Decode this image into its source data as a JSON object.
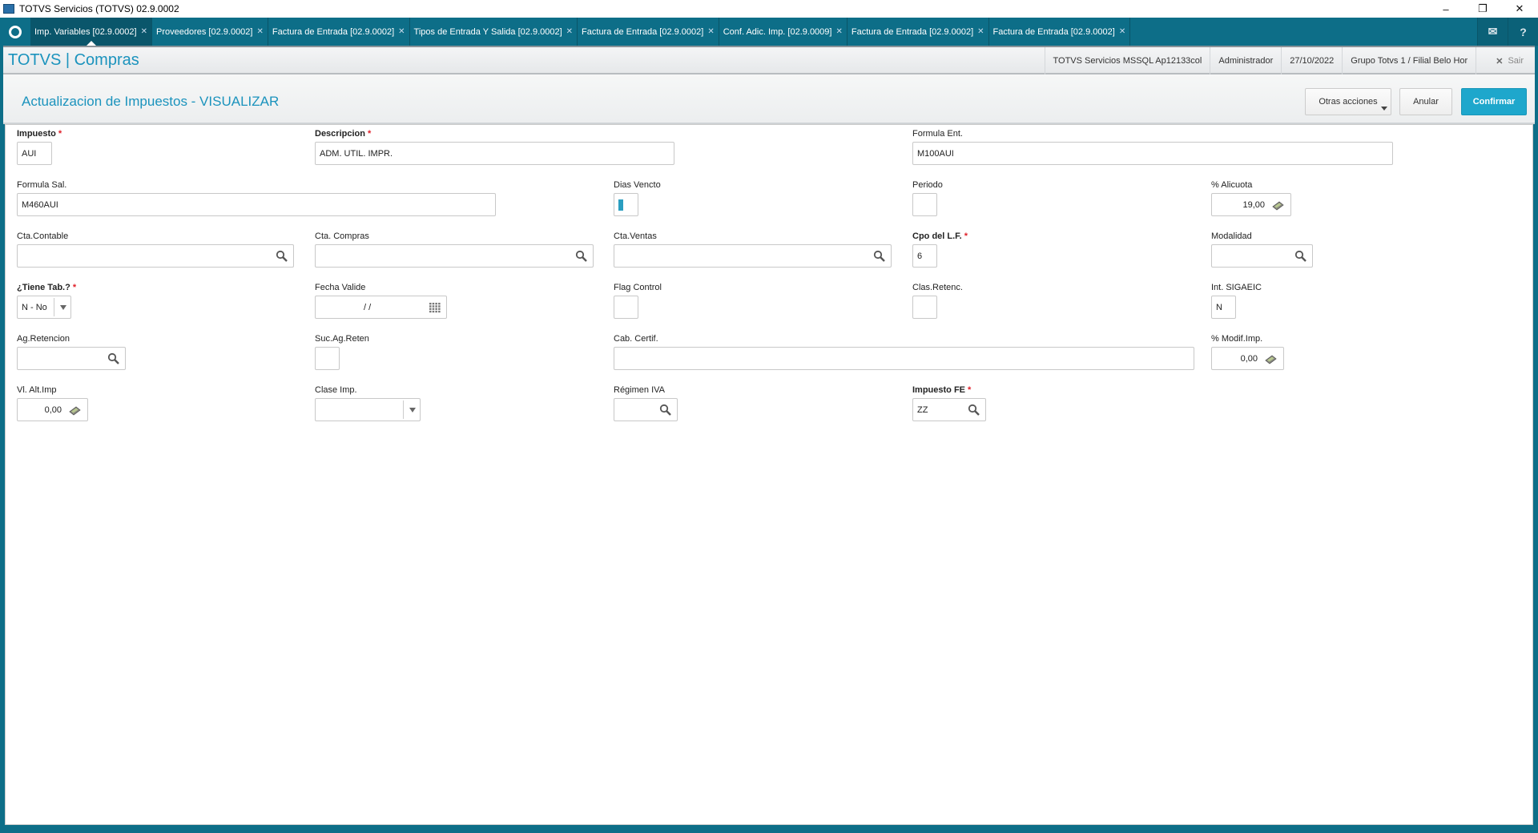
{
  "window": {
    "title": "TOTVS Servicios (TOTVS) 02.9.0002",
    "controls": [
      "minimize",
      "restore",
      "close"
    ]
  },
  "tabs": [
    {
      "label": "Imp. Variables [02.9.0002]",
      "active": true
    },
    {
      "label": "Proveedores [02.9.0002]"
    },
    {
      "label": "Factura de Entrada [02.9.0002]"
    },
    {
      "label": "Tipos de Entrada Y Salida [02.9.0002]"
    },
    {
      "label": "Factura de Entrada [02.9.0002]"
    },
    {
      "label": "Conf. Adic. Imp. [02.9.0009]"
    },
    {
      "label": "Factura de Entrada [02.9.0002]"
    },
    {
      "label": "Factura de Entrada [02.9.0002]"
    }
  ],
  "header": {
    "brand": "TOTVS | Compras",
    "environment": "TOTVS Servicios MSSQL Ap12133col",
    "user": "Administrador",
    "date": "27/10/2022",
    "branch": "Grupo Totvs 1 / Filial Belo Hor",
    "exit": "Sair"
  },
  "page": {
    "title": "Actualizacion de Impuestos - VISUALIZAR",
    "other_actions": "Otras acciones",
    "cancel": "Anular",
    "confirm": "Confirmar"
  },
  "colors": {
    "tabbar": "#0d6e88",
    "accent": "#1b93bd",
    "confirm": "#1ea7cc",
    "required": "#e0202a"
  },
  "fields": {
    "impuesto": {
      "label": "Impuesto",
      "value": "AUI",
      "required": true
    },
    "descripcion": {
      "label": "Descripcion",
      "value": "ADM. UTIL. IMPR.",
      "required": true
    },
    "formula_ent": {
      "label": "Formula Ent.",
      "value": "M100AUI"
    },
    "formula_sal": {
      "label": "Formula Sal.",
      "value": "M460AUI"
    },
    "dias_vencto": {
      "label": "Dias Vencto",
      "value": ""
    },
    "periodo": {
      "label": "Periodo",
      "value": ""
    },
    "alicuota": {
      "label": "% Alicuota",
      "value": "19,00"
    },
    "cta_contable": {
      "label": "Cta.Contable",
      "value": ""
    },
    "cta_compras": {
      "label": "Cta. Compras",
      "value": ""
    },
    "cta_ventas": {
      "label": "Cta.Ventas",
      "value": ""
    },
    "cpo_lf": {
      "label": "Cpo del L.F.",
      "value": "6",
      "required": true
    },
    "modalidad": {
      "label": "Modalidad",
      "value": ""
    },
    "tiene_tab": {
      "label": "¿Tiene Tab.?",
      "value": "N - No",
      "required": true
    },
    "fecha_valide": {
      "label": "Fecha Valide",
      "value": "/ /"
    },
    "flag_control": {
      "label": "Flag Control",
      "value": ""
    },
    "clas_retenc": {
      "label": "Clas.Retenc.",
      "value": ""
    },
    "int_sigaeic": {
      "label": "Int. SIGAEIC",
      "value": "N"
    },
    "ag_retencion": {
      "label": "Ag.Retencion",
      "value": ""
    },
    "suc_ag_reten": {
      "label": "Suc.Ag.Reten",
      "value": ""
    },
    "cab_certif": {
      "label": "Cab. Certif.",
      "value": ""
    },
    "modif_imp": {
      "label": "% Modif.Imp.",
      "value": "0,00"
    },
    "vl_alt_imp": {
      "label": "Vl. Alt.Imp",
      "value": "0,00"
    },
    "clase_imp": {
      "label": "Clase Imp.",
      "value": ""
    },
    "regimen_iva": {
      "label": "Régimen IVA",
      "value": ""
    },
    "impuesto_fe": {
      "label": "Impuesto FE",
      "value": "ZZ",
      "required": true
    }
  }
}
